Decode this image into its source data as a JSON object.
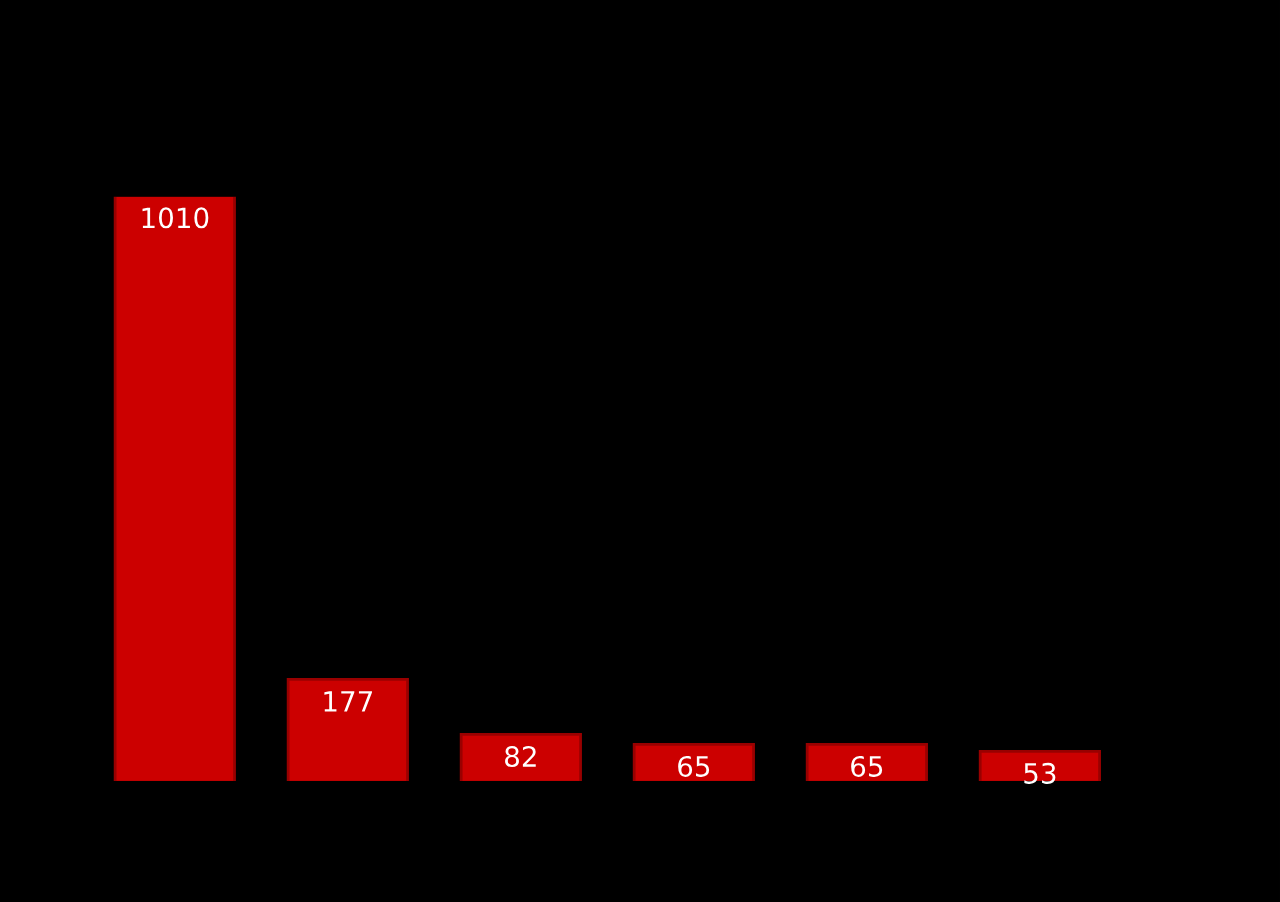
{
  "chart_data": {
    "type": "bar",
    "categories": [
      null,
      null,
      null,
      null,
      null,
      null
    ],
    "values": [
      1010,
      177,
      82,
      65,
      65,
      53
    ],
    "color": "#cc0000",
    "data_labels": true,
    "tick_labels": false,
    "grid": false,
    "legend": false
  }
}
